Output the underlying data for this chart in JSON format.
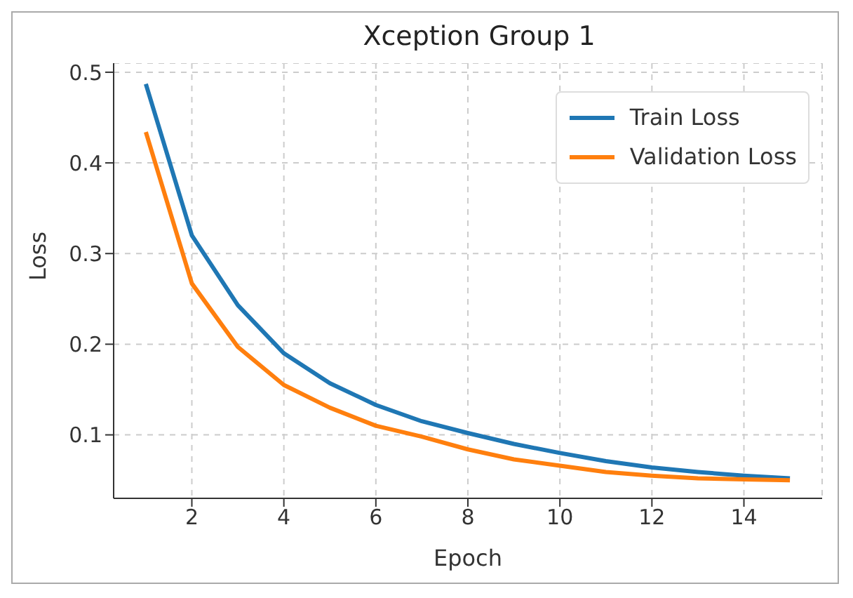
{
  "chart_data": {
    "type": "line",
    "title": "Xception  Group 1",
    "xlabel": "Epoch",
    "ylabel": "Loss",
    "x": [
      1,
      2,
      3,
      4,
      5,
      6,
      7,
      8,
      9,
      10,
      11,
      12,
      13,
      14,
      15
    ],
    "series": [
      {
        "name": "Train Loss",
        "color": "#1f77b4",
        "values": [
          0.487,
          0.32,
          0.243,
          0.19,
          0.157,
          0.133,
          0.115,
          0.102,
          0.09,
          0.08,
          0.071,
          0.064,
          0.059,
          0.055,
          0.052
        ]
      },
      {
        "name": "Validation Loss",
        "color": "#ff7f0e",
        "values": [
          0.434,
          0.267,
          0.197,
          0.155,
          0.13,
          0.11,
          0.098,
          0.084,
          0.073,
          0.066,
          0.059,
          0.055,
          0.052,
          0.051,
          0.05
        ]
      }
    ],
    "xlim": [
      0.3,
      15.7
    ],
    "ylim": [
      0.03,
      0.51
    ],
    "xticks": [
      2,
      4,
      6,
      8,
      10,
      12,
      14
    ],
    "yticks": [
      0.1,
      0.2,
      0.3,
      0.4,
      0.5
    ],
    "grid": true,
    "legend": "top right",
    "marker": "none",
    "line_style": "solid"
  }
}
